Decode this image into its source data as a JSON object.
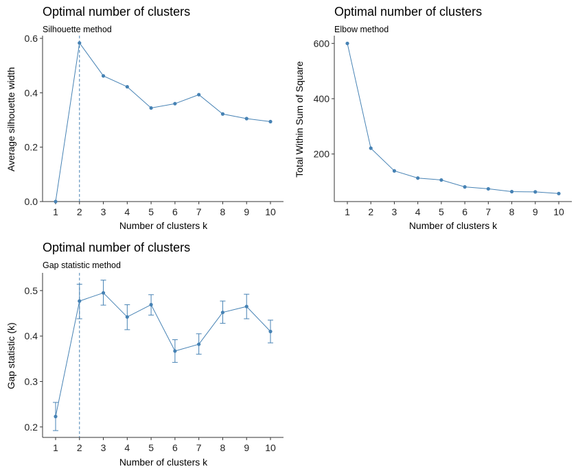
{
  "chart_data": [
    {
      "type": "line",
      "title": "Optimal number of clusters",
      "subtitle": "Silhouette method",
      "xlabel": "Number of clusters k",
      "ylabel": "Average silhouette width",
      "x": [
        1,
        2,
        3,
        4,
        5,
        6,
        7,
        8,
        9,
        10
      ],
      "series": [
        {
          "values": [
            0.0,
            0.583,
            0.462,
            0.422,
            0.344,
            0.36,
            0.393,
            0.322,
            0.305,
            0.294
          ]
        }
      ],
      "yticks": [
        "0.0",
        "0.2",
        "0.4",
        "0.6"
      ],
      "ytick_values": [
        0.0,
        0.2,
        0.4,
        0.6
      ],
      "ylim": [
        0.0,
        0.61
      ],
      "optimal_k": 2,
      "grid": false,
      "color": "#4682B4"
    },
    {
      "type": "line",
      "title": "Optimal number of clusters",
      "subtitle": "Elbow method",
      "xlabel": "Number of clusters k",
      "ylabel": "Total Within Sum of Square",
      "x": [
        1,
        2,
        3,
        4,
        5,
        6,
        7,
        8,
        9,
        10
      ],
      "series": [
        {
          "values": [
            600,
            221,
            139,
            113,
            106,
            81,
            74,
            64,
            63,
            57
          ]
        }
      ],
      "yticks": [
        "200",
        "400",
        "600"
      ],
      "ytick_values": [
        200,
        400,
        600
      ],
      "ylim": [
        28,
        628
      ],
      "grid": false,
      "color": "#4682B4"
    },
    {
      "type": "line",
      "title": "Optimal number of clusters",
      "subtitle": "Gap statistic method",
      "xlabel": "Number of clusters k",
      "ylabel": "Gap statistic (k)",
      "x": [
        1,
        2,
        3,
        4,
        5,
        6,
        7,
        8,
        9,
        10
      ],
      "series": [
        {
          "values": [
            0.223,
            0.477,
            0.495,
            0.442,
            0.469,
            0.367,
            0.382,
            0.452,
            0.465,
            0.41
          ],
          "lower": [
            0.192,
            0.438,
            0.468,
            0.414,
            0.446,
            0.342,
            0.36,
            0.428,
            0.438,
            0.385
          ],
          "upper": [
            0.254,
            0.514,
            0.523,
            0.469,
            0.491,
            0.392,
            0.405,
            0.477,
            0.492,
            0.435
          ]
        }
      ],
      "yticks": [
        "0.2",
        "0.3",
        "0.4",
        "0.5"
      ],
      "ytick_values": [
        0.2,
        0.3,
        0.4,
        0.5
      ],
      "ylim": [
        0.177,
        0.539
      ],
      "optimal_k": 2,
      "grid": false,
      "color": "#4682B4"
    }
  ]
}
